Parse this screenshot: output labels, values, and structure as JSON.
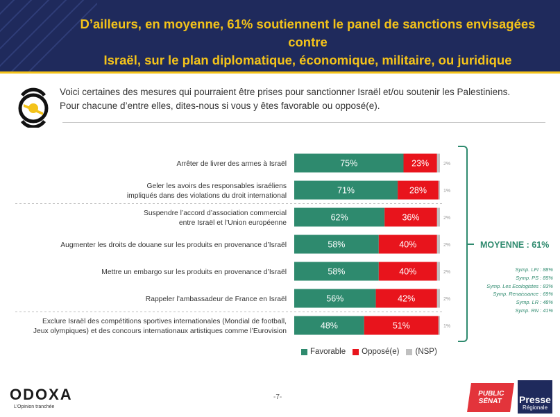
{
  "header": {
    "title_line1": "D’ailleurs, en moyenne, 61% soutiennent le panel de sanctions envisagées contre",
    "title_line2": "Israël, sur le plan diplomatique, économique, militaire, ou juridique"
  },
  "question": {
    "line1": "Voici certaines des mesures qui pourraient être prises pour sanctionner Israël et/ou soutenir les Palestiniens.",
    "line2": "Pour chacune d’entre elles, dites-nous si vous y êtes favorable ou opposé(e)."
  },
  "colors": {
    "favorable": "#2e8a6e",
    "oppose": "#e8141c",
    "nsp": "#c0c0c0",
    "header_bg": "#1f2a5c",
    "accent": "#f4c31a"
  },
  "chart_data": {
    "type": "bar",
    "orientation": "horizontal",
    "stacked": true,
    "categories": [
      [
        "Arrêter de livrer des armes à Israël"
      ],
      [
        "Geler les avoirs des responsables israéliens",
        "impliqués dans des violations du droit international"
      ],
      [
        "Suspendre l’accord d’association commercial",
        "entre Israël et l’Union européenne"
      ],
      [
        "Augmenter les droits de douane sur les produits en provenance d’Israël"
      ],
      [
        "Mettre un embargo sur les produits en provenance d’Israël"
      ],
      [
        "Rappeler l’ambassadeur de France en Israël"
      ],
      [
        "Exclure Israël des compétitions sportives internationales (Mondial de football,",
        "Jeux olympiques) et des concours internationaux artistiques comme l’Eurovision"
      ]
    ],
    "series": [
      {
        "name": "Favorable",
        "values": [
          75,
          71,
          62,
          58,
          58,
          56,
          48
        ]
      },
      {
        "name": "Opposé(e)",
        "values": [
          23,
          28,
          36,
          40,
          40,
          42,
          51
        ]
      },
      {
        "name": "(NSP)",
        "values": [
          2,
          1,
          2,
          2,
          2,
          2,
          1
        ]
      }
    ],
    "xlim": [
      0,
      100
    ],
    "legend_position": "bottom",
    "grid": false
  },
  "summary": {
    "moyenne": "MOYENNE : 61%",
    "symp": [
      "Symp. LFI : 88%",
      "Symp. PS : 85%",
      "Symp. Les Ecologistes : 83%",
      "Symp. Renaissance : 69%",
      "Symp. LR : 48%",
      "Symp. RN : 41%"
    ]
  },
  "footer": {
    "logo": "ODOXA",
    "tagline": "L’Opinion tranchée",
    "page": "-7-",
    "publicsenat_line1": "PUBLIC",
    "publicsenat_line2": "SÉNAT",
    "presse_line1": "Presse",
    "presse_line2": "Régionale"
  }
}
